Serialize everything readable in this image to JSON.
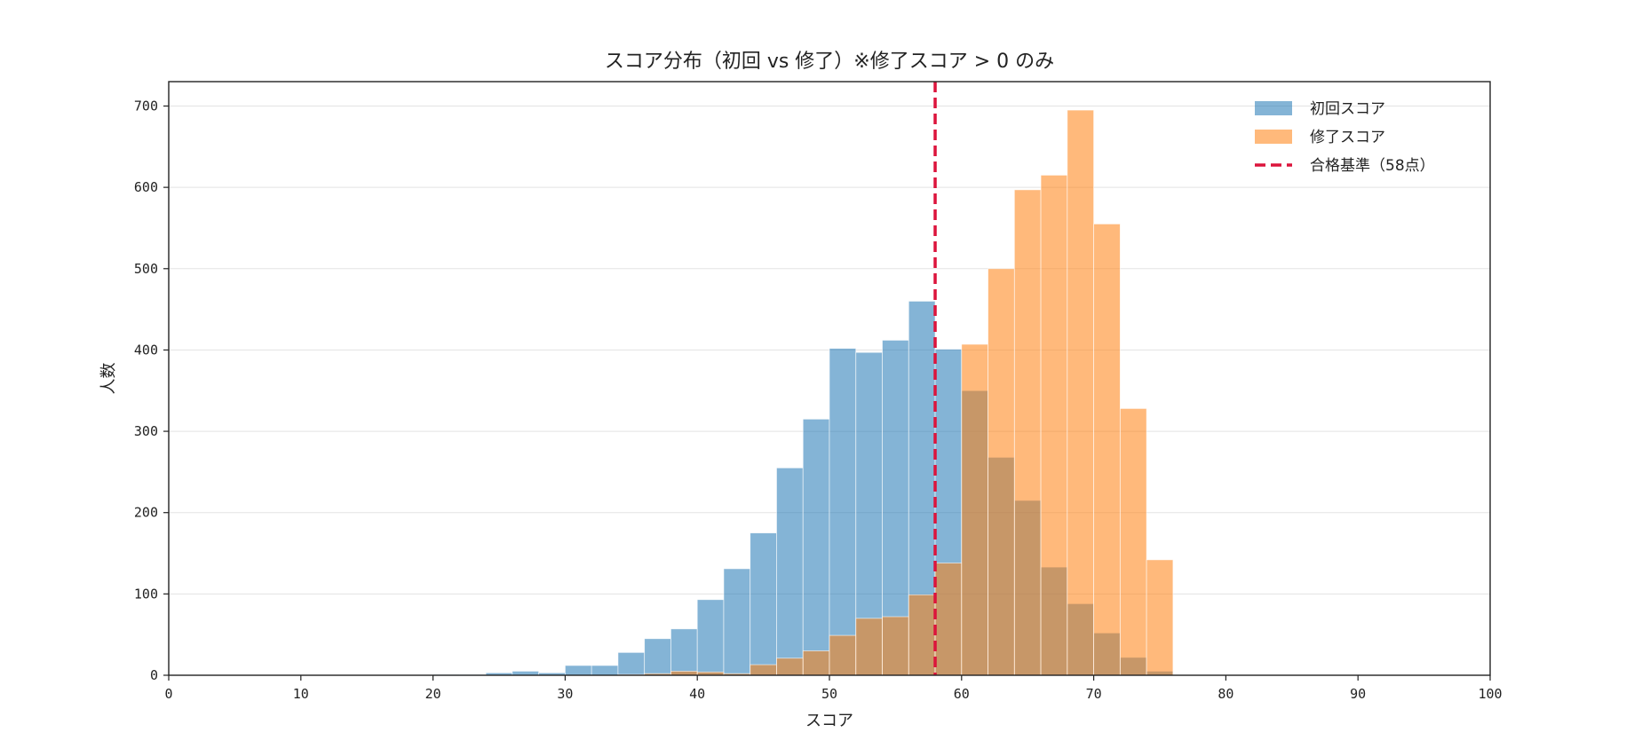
{
  "chart_data": {
    "type": "histogram",
    "title": "スコア分布（初回 vs 修了）※修了スコア > 0 のみ",
    "xlabel": "スコア",
    "ylabel": "人数",
    "xlim": [
      0,
      100
    ],
    "ylim": [
      0,
      730
    ],
    "xticks": [
      0,
      10,
      20,
      30,
      40,
      50,
      60,
      70,
      80,
      90,
      100
    ],
    "yticks": [
      0,
      100,
      200,
      300,
      400,
      500,
      600,
      700
    ],
    "grid": "horizontal",
    "legend_position": "top-right",
    "bin_width": 2,
    "bin_edges_start": 0,
    "series": [
      {
        "name": "初回スコア",
        "color": "#1f77b4",
        "alpha": 0.55,
        "values": [
          0,
          0,
          0,
          0,
          0,
          0,
          0,
          0,
          0,
          0,
          1,
          1,
          3,
          5,
          3,
          12,
          12,
          28,
          45,
          57,
          93,
          131,
          175,
          255,
          315,
          402,
          397,
          412,
          460,
          401,
          350,
          268,
          215,
          133,
          88,
          52,
          22,
          5,
          0,
          0,
          0,
          0,
          0,
          0,
          0,
          0,
          0,
          0,
          0,
          0
        ]
      },
      {
        "name": "修了スコア",
        "color": "#ff7f0e",
        "alpha": 0.55,
        "values": [
          0,
          0,
          0,
          0,
          0,
          0,
          0,
          0,
          0,
          0,
          0,
          0,
          0,
          0,
          0,
          0,
          0,
          1,
          2,
          5,
          4,
          2,
          13,
          21,
          30,
          49,
          70,
          72,
          99,
          138,
          407,
          500,
          597,
          615,
          695,
          555,
          328,
          142,
          0,
          0,
          0,
          0,
          0,
          0,
          0,
          0,
          0,
          0,
          0,
          0
        ]
      }
    ],
    "reference_line": {
      "name": "合格基準（58点）",
      "x": 58,
      "color": "#dc143c",
      "style": "dashed"
    }
  }
}
